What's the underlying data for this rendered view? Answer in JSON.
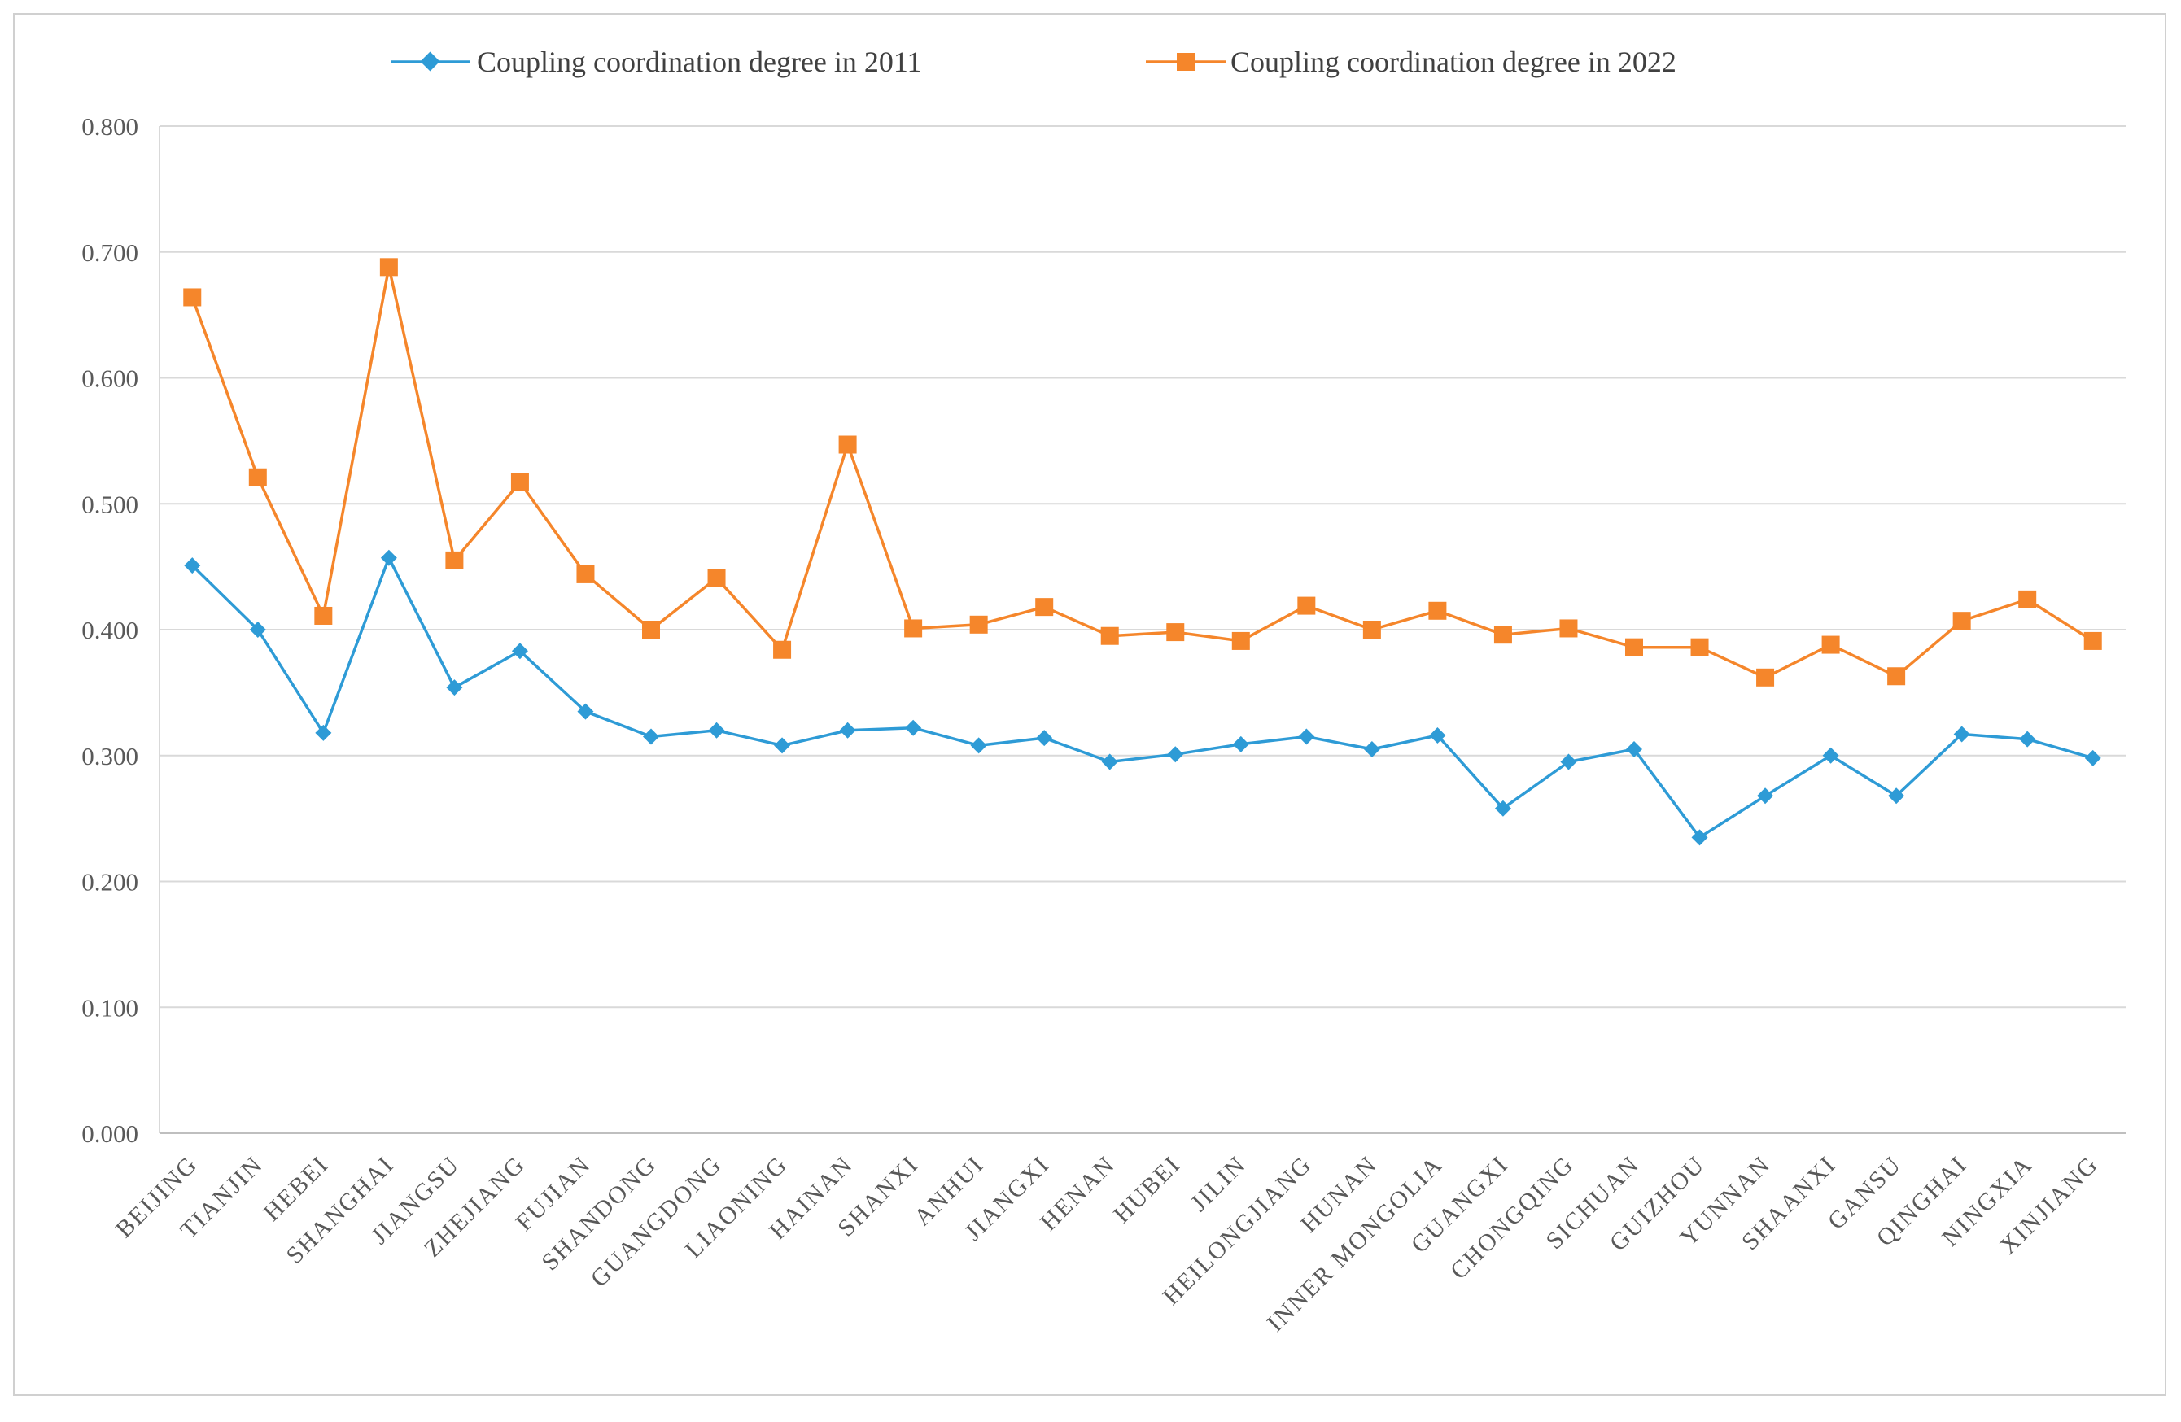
{
  "chart_data": {
    "type": "line",
    "title": "",
    "xlabel": "",
    "ylabel": "",
    "ylim": [
      0,
      0.8
    ],
    "yticks": [
      "0.000",
      "0.100",
      "0.200",
      "0.300",
      "0.400",
      "0.500",
      "0.600",
      "0.700",
      "0.800"
    ],
    "grid": true,
    "legend_position": "top-center",
    "categories": [
      "BEIJING",
      "TIANJIN",
      "HEBEI",
      "SHANGHAI",
      "JIANGSU",
      "ZHEJIANG",
      "FUJIAN",
      "SHANDONG",
      "GUANGDONG",
      "LIAONING",
      "HAINAN",
      "SHANXI",
      "ANHUI",
      "JIANGXI",
      "HENAN",
      "HUBEI",
      "JILIN",
      "HEILONGJIANG",
      "HUNAN",
      "INNER MONGOLIA",
      "GUANGXI",
      "CHONGQING",
      "SICHUAN",
      "GUIZHOU",
      "YUNNAN",
      "SHAANXI",
      "GANSU",
      "QINGHAI",
      "NINGXIA",
      "XINJIANG"
    ],
    "series": [
      {
        "name": "Coupling coordination degree in 2011",
        "color": "#2e9bd6",
        "marker": "diamond",
        "values": [
          0.451,
          0.4,
          0.318,
          0.457,
          0.354,
          0.383,
          0.335,
          0.315,
          0.32,
          0.308,
          0.32,
          0.322,
          0.308,
          0.314,
          0.295,
          0.301,
          0.309,
          0.315,
          0.305,
          0.316,
          0.258,
          0.295,
          0.305,
          0.235,
          0.268,
          0.3,
          0.268,
          0.317,
          0.313,
          0.298
        ]
      },
      {
        "name": "Coupling coordination degree in 2022",
        "color": "#f5862b",
        "marker": "square",
        "values": [
          0.664,
          0.521,
          0.411,
          0.688,
          0.455,
          0.517,
          0.444,
          0.4,
          0.441,
          0.384,
          0.547,
          0.401,
          0.404,
          0.418,
          0.395,
          0.398,
          0.391,
          0.419,
          0.4,
          0.415,
          0.396,
          0.401,
          0.386,
          0.386,
          0.362,
          0.388,
          0.363,
          0.407,
          0.424,
          0.391
        ]
      }
    ]
  }
}
